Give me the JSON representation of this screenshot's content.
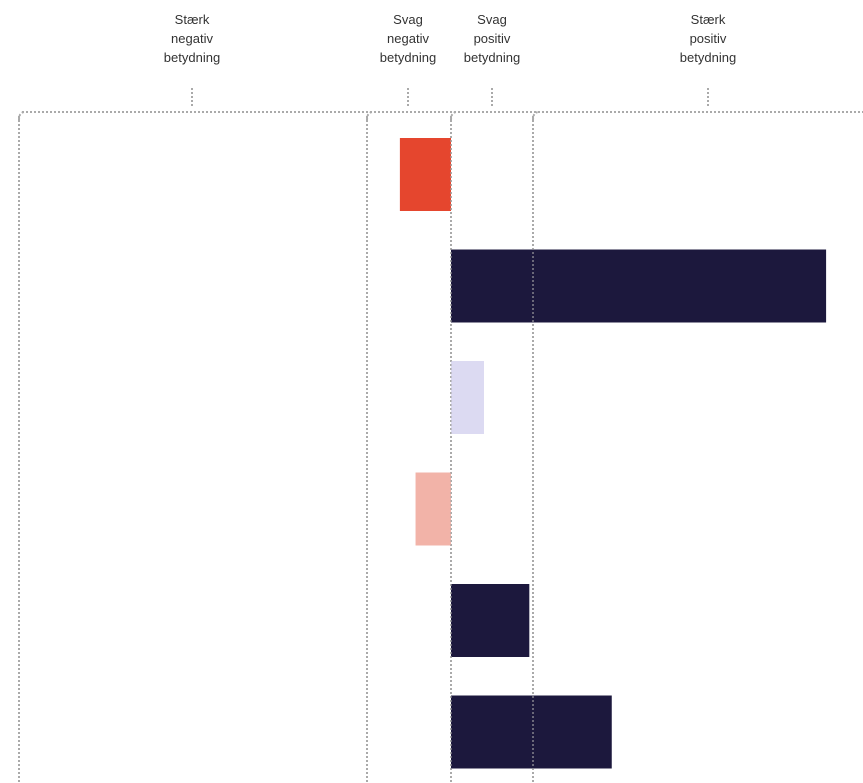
{
  "chart_data": {
    "type": "bar",
    "orientation": "horizontal",
    "zones": [
      {
        "lines": [
          "Stærk",
          "negativ",
          "betydning"
        ],
        "from": -5.0,
        "to": -1.0
      },
      {
        "lines": [
          "Svag",
          "negativ",
          "betydning"
        ],
        "from": -1.0,
        "to": 0.0
      },
      {
        "lines": [
          "Svag",
          "positiv",
          "betydning"
        ],
        "from": 0.0,
        "to": 1.0
      },
      {
        "lines": [
          "Stærk",
          "positiv",
          "betydning"
        ],
        "from": 1.0,
        "to": 4.0
      }
    ],
    "values": [
      -0.62,
      4.55,
      0.4,
      -0.43,
      0.95,
      1.95
    ],
    "bar_colors": [
      "#e5462e",
      "#1c183d",
      "#dcdaf2",
      "#f2b3a8",
      "#1c183d",
      "#1c183d"
    ],
    "xlim": [
      -5.3,
      4.95
    ],
    "grid": false,
    "legend": "none"
  },
  "colors": {
    "divider": "#aaaaaa",
    "text": "#333333"
  }
}
